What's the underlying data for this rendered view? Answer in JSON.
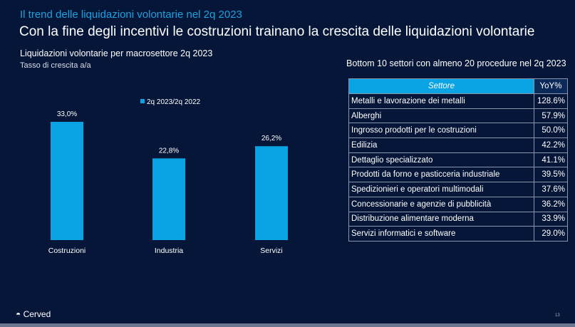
{
  "header": {
    "kicker": "Il trend delle liquidazioni  volontarie nel 2q 2023",
    "title": "Con la fine degli incentivi le costruzioni trainano la crescita delle liquidazioni volontarie"
  },
  "chart_data": {
    "type": "bar",
    "title": "Liquidazioni volontarie per macrosettore 2q 2023",
    "subtitle": "Tasso di crescita a/a",
    "categories": [
      "Costruzioni",
      "Industria",
      "Servizi"
    ],
    "series": [
      {
        "name": "2q 2023/2q 2022",
        "values": [
          33.0,
          22.8,
          26.2
        ],
        "labels": [
          "33,0%",
          "22,8%",
          "26,2%"
        ]
      }
    ],
    "legend_position": "top-center",
    "grid": false,
    "bar_color": "#0aa3e3"
  },
  "table": {
    "title": "Bottom 10 settori con almeno 20 procedure nel 2q 2023",
    "headers": [
      "Settore",
      "YoY%"
    ],
    "rows": [
      [
        "Metalli e lavorazione dei metalli",
        "128.6%"
      ],
      [
        "Alberghi",
        "57.9%"
      ],
      [
        "Ingrosso prodotti per le costruzioni",
        "50.0%"
      ],
      [
        "Edilizia",
        "42.2%"
      ],
      [
        "Dettaglio specializzato",
        "41.1%"
      ],
      [
        "Prodotti da forno e pasticceria industriale",
        "39.5%"
      ],
      [
        "Spedizionieri e operatori multimodali",
        "37.6%"
      ],
      [
        "Concessionarie e agenzie di pubblicità",
        "36.2%"
      ],
      [
        "Distribuzione alimentare moderna",
        "33.9%"
      ],
      [
        "Servizi informatici e software",
        "29.0%"
      ]
    ]
  },
  "footer": {
    "logo": "Cerved",
    "page": "13"
  }
}
